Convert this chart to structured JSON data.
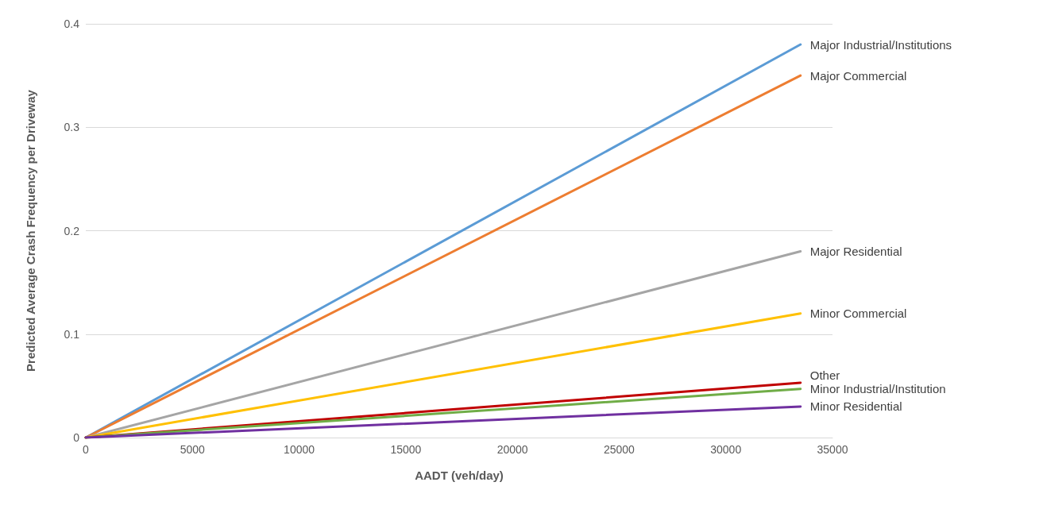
{
  "chart_data": {
    "type": "line",
    "xlabel": "AADT (veh/day)",
    "ylabel": "Predicted Average Crash Frequency per Driveway",
    "x": [
      0,
      33500
    ],
    "xlim": [
      0,
      35000
    ],
    "xticks": [
      0,
      5000,
      10000,
      15000,
      20000,
      25000,
      30000,
      35000
    ],
    "ylim": [
      0,
      0.4
    ],
    "yticks": [
      0,
      0.1,
      0.2,
      0.3,
      0.4
    ],
    "grid": "y",
    "marker": "none",
    "line_style": "solid",
    "series": [
      {
        "name": "Major Industrial/Institutions",
        "color": "#5b9bd5",
        "values": [
          0,
          0.38
        ]
      },
      {
        "name": "Major Commercial",
        "color": "#ed7d31",
        "values": [
          0,
          0.35
        ]
      },
      {
        "name": "Major Residential",
        "color": "#a5a5a5",
        "values": [
          0,
          0.18
        ]
      },
      {
        "name": "Minor Commercial",
        "color": "#ffc000",
        "values": [
          0,
          0.12
        ]
      },
      {
        "name": "Other",
        "color": "#c00000",
        "values": [
          0,
          0.053
        ]
      },
      {
        "name": "Minor Industrial/Institution",
        "color": "#70ad47",
        "values": [
          0,
          0.047
        ]
      },
      {
        "name": "Minor Residential",
        "color": "#7030a0",
        "values": [
          0,
          0.03
        ]
      }
    ]
  }
}
